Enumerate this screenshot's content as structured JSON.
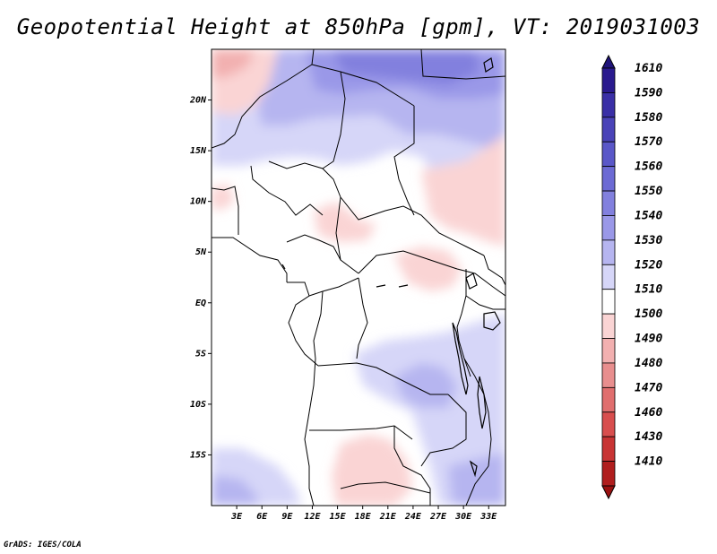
{
  "title": "Geopotential Height at 850hPa [gpm], VT: 2019031003",
  "footer": "GrADS: IGES/COLA",
  "map": {
    "lon_range": [
      0,
      35
    ],
    "lat_range": [
      -20,
      25
    ],
    "lat_ticks": [
      {
        "value": 20,
        "label": "20N"
      },
      {
        "value": 15,
        "label": "15N"
      },
      {
        "value": 10,
        "label": "10N"
      },
      {
        "value": 5,
        "label": "5N"
      },
      {
        "value": 0,
        "label": "EQ"
      },
      {
        "value": -5,
        "label": "5S"
      },
      {
        "value": -10,
        "label": "10S"
      },
      {
        "value": -15,
        "label": "15S"
      }
    ],
    "lon_ticks": [
      {
        "value": 3,
        "label": "3E"
      },
      {
        "value": 6,
        "label": "6E"
      },
      {
        "value": 9,
        "label": "9E"
      },
      {
        "value": 12,
        "label": "12E"
      },
      {
        "value": 15,
        "label": "15E"
      },
      {
        "value": 18,
        "label": "18E"
      },
      {
        "value": 21,
        "label": "21E"
      },
      {
        "value": 24,
        "label": "24E"
      },
      {
        "value": 27,
        "label": "27E"
      },
      {
        "value": 30,
        "label": "30E"
      },
      {
        "value": 33,
        "label": "33E"
      }
    ]
  },
  "colorbar": {
    "levels": [
      {
        "label": "1610",
        "color": "#2a1a8e"
      },
      {
        "label": "1590",
        "color": "#3a2fa6"
      },
      {
        "label": "1580",
        "color": "#4a43b8"
      },
      {
        "label": "1570",
        "color": "#5a57c8"
      },
      {
        "label": "1560",
        "color": "#6c6ad4"
      },
      {
        "label": "1550",
        "color": "#8280de"
      },
      {
        "label": "1540",
        "color": "#9a98e8"
      },
      {
        "label": "1530",
        "color": "#b6b5f0"
      },
      {
        "label": "1520",
        "color": "#d6d6f8"
      },
      {
        "label": "1510",
        "color": "#ffffff"
      },
      {
        "label": "1500",
        "color": "#fad4d4"
      },
      {
        "label": "1490",
        "color": "#f2b0b0"
      },
      {
        "label": "1480",
        "color": "#e88e8e"
      },
      {
        "label": "1470",
        "color": "#e06e6e"
      },
      {
        "label": "1460",
        "color": "#d84e4e"
      },
      {
        "label": "1430",
        "color": "#c83434"
      },
      {
        "label": "1410",
        "color": "#b01e1e"
      }
    ],
    "top_color": "#20147a",
    "bottom_color": "#9a1010"
  }
}
